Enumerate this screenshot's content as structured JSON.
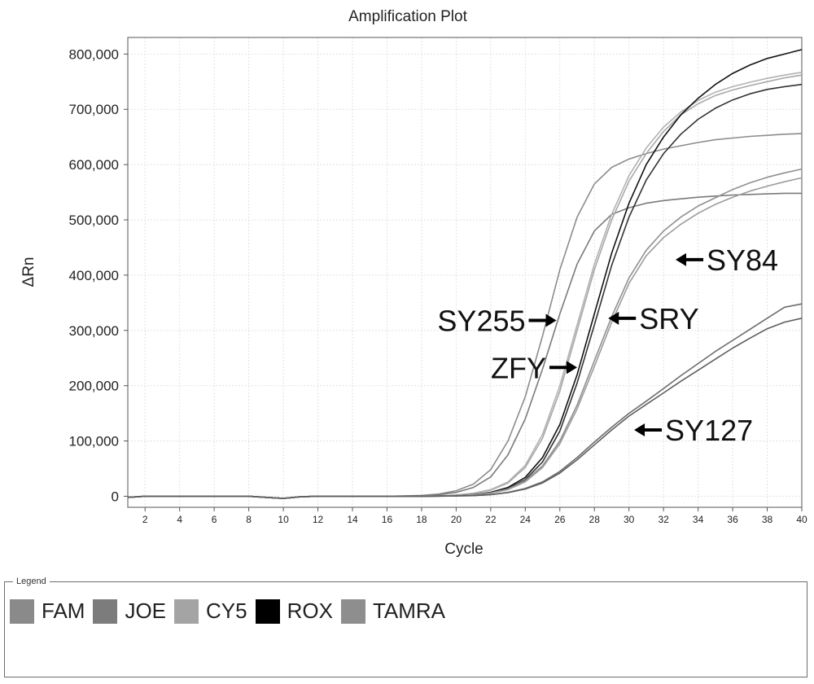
{
  "chart_data": {
    "type": "line",
    "title": "Amplification Plot",
    "xlabel": "Cycle",
    "ylabel": "ΔRn",
    "xlim": [
      1,
      40
    ],
    "ylim": [
      -20000,
      830000
    ],
    "xticks": [
      2,
      4,
      6,
      8,
      10,
      12,
      14,
      16,
      18,
      20,
      22,
      24,
      26,
      28,
      30,
      32,
      34,
      36,
      38,
      40
    ],
    "yticks": [
      0,
      100000,
      200000,
      300000,
      400000,
      500000,
      600000,
      700000,
      800000
    ],
    "ytick_labels": [
      "0",
      "100,000",
      "200,000",
      "300,000",
      "400,000",
      "500,000",
      "600,000",
      "700,000",
      "800,000"
    ],
    "grid": true,
    "x": [
      1,
      2,
      3,
      4,
      5,
      6,
      7,
      8,
      9,
      10,
      11,
      12,
      13,
      14,
      15,
      16,
      17,
      18,
      19,
      20,
      21,
      22,
      23,
      24,
      25,
      26,
      27,
      28,
      29,
      30,
      31,
      32,
      33,
      34,
      35,
      36,
      37,
      38,
      39,
      40
    ],
    "series": [
      {
        "channel": "FAM",
        "color": "#8c8c8c",
        "values": [
          -2000,
          0,
          0,
          0,
          0,
          0,
          0,
          0,
          -2000,
          -4000,
          -1000,
          0,
          0,
          0,
          0,
          0,
          500,
          1500,
          4000,
          10000,
          22000,
          48000,
          100000,
          180000,
          290000,
          410000,
          505000,
          565000,
          595000,
          610000,
          620000,
          628000,
          634000,
          640000,
          645000,
          648000,
          651000,
          653000,
          655000,
          656000
        ]
      },
      {
        "channel": "JOE",
        "color": "#7a7a7a",
        "values": [
          -2000,
          0,
          0,
          0,
          0,
          0,
          0,
          0,
          -2000,
          -4000,
          -1000,
          0,
          0,
          0,
          0,
          0,
          300,
          1000,
          3000,
          7000,
          16000,
          35000,
          75000,
          140000,
          230000,
          330000,
          420000,
          480000,
          510000,
          522000,
          530000,
          535000,
          538000,
          541000,
          543000,
          545000,
          546000,
          547000,
          548000,
          548000
        ]
      },
      {
        "channel": "CY5",
        "color": "#a8a8a8",
        "values": [
          -2000,
          0,
          0,
          0,
          0,
          0,
          0,
          0,
          -2000,
          -4000,
          -1000,
          0,
          0,
          0,
          0,
          0,
          0,
          200,
          800,
          2000,
          5000,
          11000,
          24000,
          52000,
          105000,
          190000,
          300000,
          410000,
          500000,
          570000,
          620000,
          660000,
          690000,
          710000,
          725000,
          735000,
          743000,
          750000,
          757000,
          762000
        ]
      },
      {
        "channel": "CY5",
        "color": "#b2b2b2",
        "values": [
          -2000,
          0,
          0,
          0,
          0,
          0,
          0,
          0,
          -2000,
          -4000,
          -1000,
          0,
          0,
          0,
          0,
          0,
          0,
          200,
          900,
          2200,
          5500,
          12000,
          26000,
          56000,
          112000,
          200000,
          310000,
          420000,
          510000,
          580000,
          630000,
          668000,
          695000,
          716000,
          731000,
          741000,
          749000,
          756000,
          762000,
          767000
        ]
      },
      {
        "channel": "ROX",
        "color": "#111111",
        "values": [
          -2000,
          0,
          0,
          0,
          0,
          0,
          0,
          0,
          -2000,
          -4000,
          -1000,
          0,
          0,
          0,
          0,
          0,
          0,
          100,
          400,
          1200,
          3000,
          7000,
          16000,
          34000,
          70000,
          130000,
          220000,
          330000,
          440000,
          530000,
          600000,
          650000,
          690000,
          720000,
          745000,
          765000,
          780000,
          792000,
          800000,
          808000
        ]
      },
      {
        "channel": "ROX",
        "color": "#333333",
        "values": [
          -2000,
          0,
          0,
          0,
          0,
          0,
          0,
          0,
          -2000,
          -4000,
          -1000,
          0,
          0,
          0,
          0,
          0,
          0,
          100,
          350,
          1000,
          2600,
          6000,
          14000,
          30000,
          62000,
          118000,
          205000,
          310000,
          418000,
          505000,
          572000,
          620000,
          655000,
          682000,
          702000,
          717000,
          728000,
          736000,
          741000,
          745000
        ]
      },
      {
        "channel": "TAMRA",
        "color": "#909090",
        "values": [
          -2000,
          0,
          0,
          0,
          0,
          0,
          0,
          0,
          -2000,
          -4000,
          -1000,
          0,
          0,
          0,
          0,
          0,
          0,
          100,
          400,
          1000,
          2500,
          6000,
          13000,
          28000,
          55000,
          100000,
          165000,
          245000,
          325000,
          395000,
          445000,
          480000,
          505000,
          525000,
          540000,
          555000,
          567000,
          577000,
          585000,
          592000
        ]
      },
      {
        "channel": "TAMRA",
        "color": "#9c9c9c",
        "values": [
          -2000,
          0,
          0,
          0,
          0,
          0,
          0,
          0,
          -2000,
          -4000,
          -1000,
          0,
          0,
          0,
          0,
          0,
          0,
          100,
          350,
          900,
          2300,
          5500,
          12000,
          26000,
          52000,
          95000,
          158000,
          235000,
          315000,
          385000,
          435000,
          468000,
          492000,
          512000,
          528000,
          541000,
          552000,
          561000,
          569000,
          576000
        ]
      },
      {
        "channel": "TAMRA",
        "color": "#6c6c6c",
        "values": [
          -2000,
          0,
          0,
          0,
          0,
          0,
          0,
          0,
          -2000,
          -4000,
          -1000,
          0,
          0,
          0,
          0,
          0,
          0,
          0,
          200,
          500,
          1200,
          3000,
          7000,
          14000,
          26000,
          45000,
          70000,
          98000,
          125000,
          150000,
          172000,
          195000,
          218000,
          240000,
          262000,
          282000,
          302000,
          322000,
          342000,
          348000
        ]
      },
      {
        "channel": "TAMRA",
        "color": "#5e5e5e",
        "values": [
          -2000,
          0,
          0,
          0,
          0,
          0,
          0,
          0,
          -2000,
          -4000,
          -1000,
          0,
          0,
          0,
          0,
          0,
          0,
          0,
          150,
          450,
          1100,
          2800,
          6500,
          13000,
          24000,
          42000,
          66000,
          93000,
          120000,
          145000,
          166000,
          187000,
          208000,
          228000,
          248000,
          268000,
          286000,
          303000,
          315000,
          322000
        ]
      }
    ],
    "annotations": [
      {
        "text": "SY255",
        "x": 25.8,
        "y": 318000,
        "arrow": "right"
      },
      {
        "text": "ZFY",
        "x": 27.0,
        "y": 233000,
        "arrow": "right"
      },
      {
        "text": "SRY",
        "x": 28.8,
        "y": 322000,
        "arrow": "left"
      },
      {
        "text": "SY84",
        "x": 32.7,
        "y": 428000,
        "arrow": "left"
      },
      {
        "text": "SY127",
        "x": 30.3,
        "y": 120000,
        "arrow": "left"
      }
    ]
  },
  "legend": {
    "title": "Legend",
    "items": [
      {
        "label": "FAM",
        "color": "#8a8a8a"
      },
      {
        "label": "JOE",
        "color": "#7c7c7c"
      },
      {
        "label": "CY5",
        "color": "#a4a4a4"
      },
      {
        "label": "ROX",
        "color": "#000000"
      },
      {
        "label": "TAMRA",
        "color": "#8e8e8e"
      }
    ]
  }
}
